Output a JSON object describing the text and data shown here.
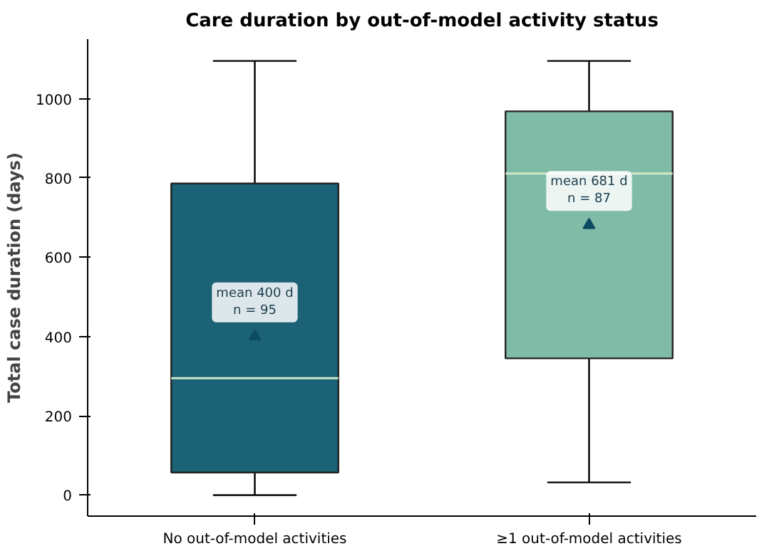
{
  "chart_data": {
    "type": "box",
    "title": "Care duration by out-of-model activity status",
    "ylabel": "Total case duration (days)",
    "categories": [
      "No out-of-model activities",
      "≥1 out-of-model activities"
    ],
    "boxes": [
      {
        "low": 0,
        "q1": 57,
        "median": 295,
        "q3": 786,
        "high": 1095,
        "mean": 400
      },
      {
        "low": 32,
        "q1": 345,
        "median": 811,
        "q3": 968,
        "high": 1095,
        "mean": 681
      }
    ],
    "colors": [
      "#1b6277",
      "#80bba8"
    ],
    "ylim": [
      -53,
      1150
    ],
    "yticks": [
      0,
      200,
      400,
      600,
      800,
      1000
    ],
    "annotations": [
      "mean 400 d\nn = 95",
      "mean 681 d\nn = 87"
    ]
  }
}
